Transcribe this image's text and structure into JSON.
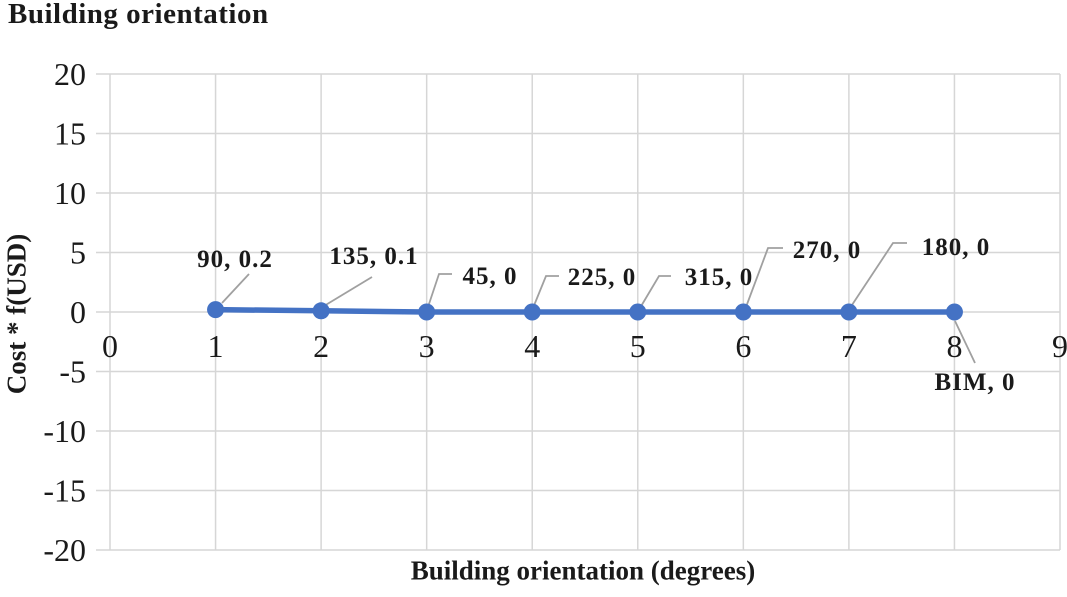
{
  "chart_data": {
    "type": "line",
    "title": "Building orientation",
    "xlabel": "Building orientation (degrees)",
    "ylabel": "Cost * f(USD)",
    "xlim": [
      0,
      9
    ],
    "ylim": [
      -20,
      20
    ],
    "x_ticks": [
      0,
      1,
      2,
      3,
      4,
      5,
      6,
      7,
      8,
      9
    ],
    "y_ticks": [
      20,
      15,
      10,
      5,
      0,
      -5,
      -10,
      -15,
      -20
    ],
    "grid": true,
    "legend": "none",
    "series": [
      {
        "name": "Cost * f(USD)",
        "x": [
          1,
          2,
          3,
          4,
          5,
          6,
          7,
          8
        ],
        "y": [
          0.2,
          0.1,
          0,
          0,
          0,
          0,
          0,
          0
        ],
        "point_labels": [
          "90, 0.2",
          "135, 0.1",
          "45, 0",
          "225, 0",
          "315, 0",
          "270, 0",
          "180, 0",
          "BIM, 0"
        ],
        "marker": "circle",
        "color": "#4472C4"
      }
    ],
    "colors": {
      "line": "#4472C4",
      "gridline": "#D6D6D6",
      "leader_line": "#A0A0A0",
      "text": "#1a1a1a"
    }
  }
}
